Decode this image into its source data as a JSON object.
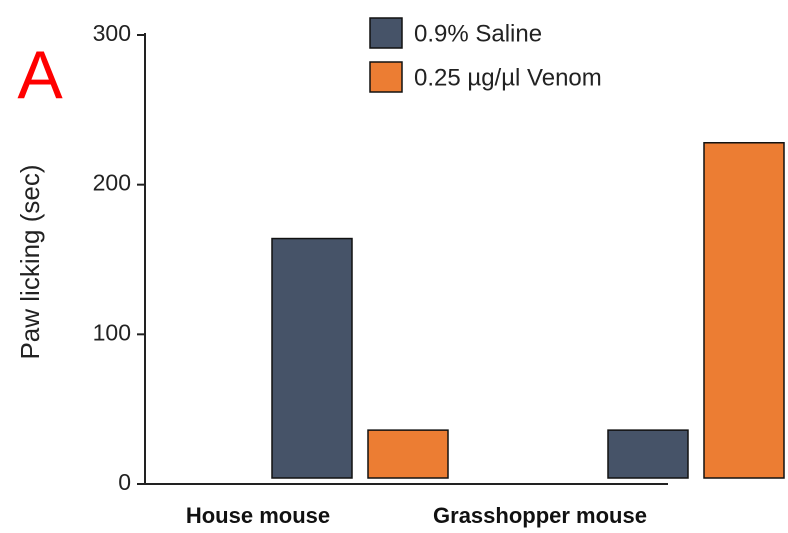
{
  "chart_data": {
    "type": "bar",
    "panel_label": "A",
    "ylabel": "Paw licking (sec)",
    "categories": [
      "House mouse",
      "Grasshopper mouse"
    ],
    "series": [
      {
        "name": "0.9% Saline",
        "color": "#465368",
        "values": [
          164,
          36
        ]
      },
      {
        "name": "0.25 µg/µl Venom",
        "color": "#ec7d33",
        "values": [
          36,
          228
        ]
      }
    ],
    "ylim": [
      0,
      300
    ],
    "yticks": [
      0,
      100,
      200,
      300
    ],
    "legend": "upper center",
    "grid": false
  }
}
